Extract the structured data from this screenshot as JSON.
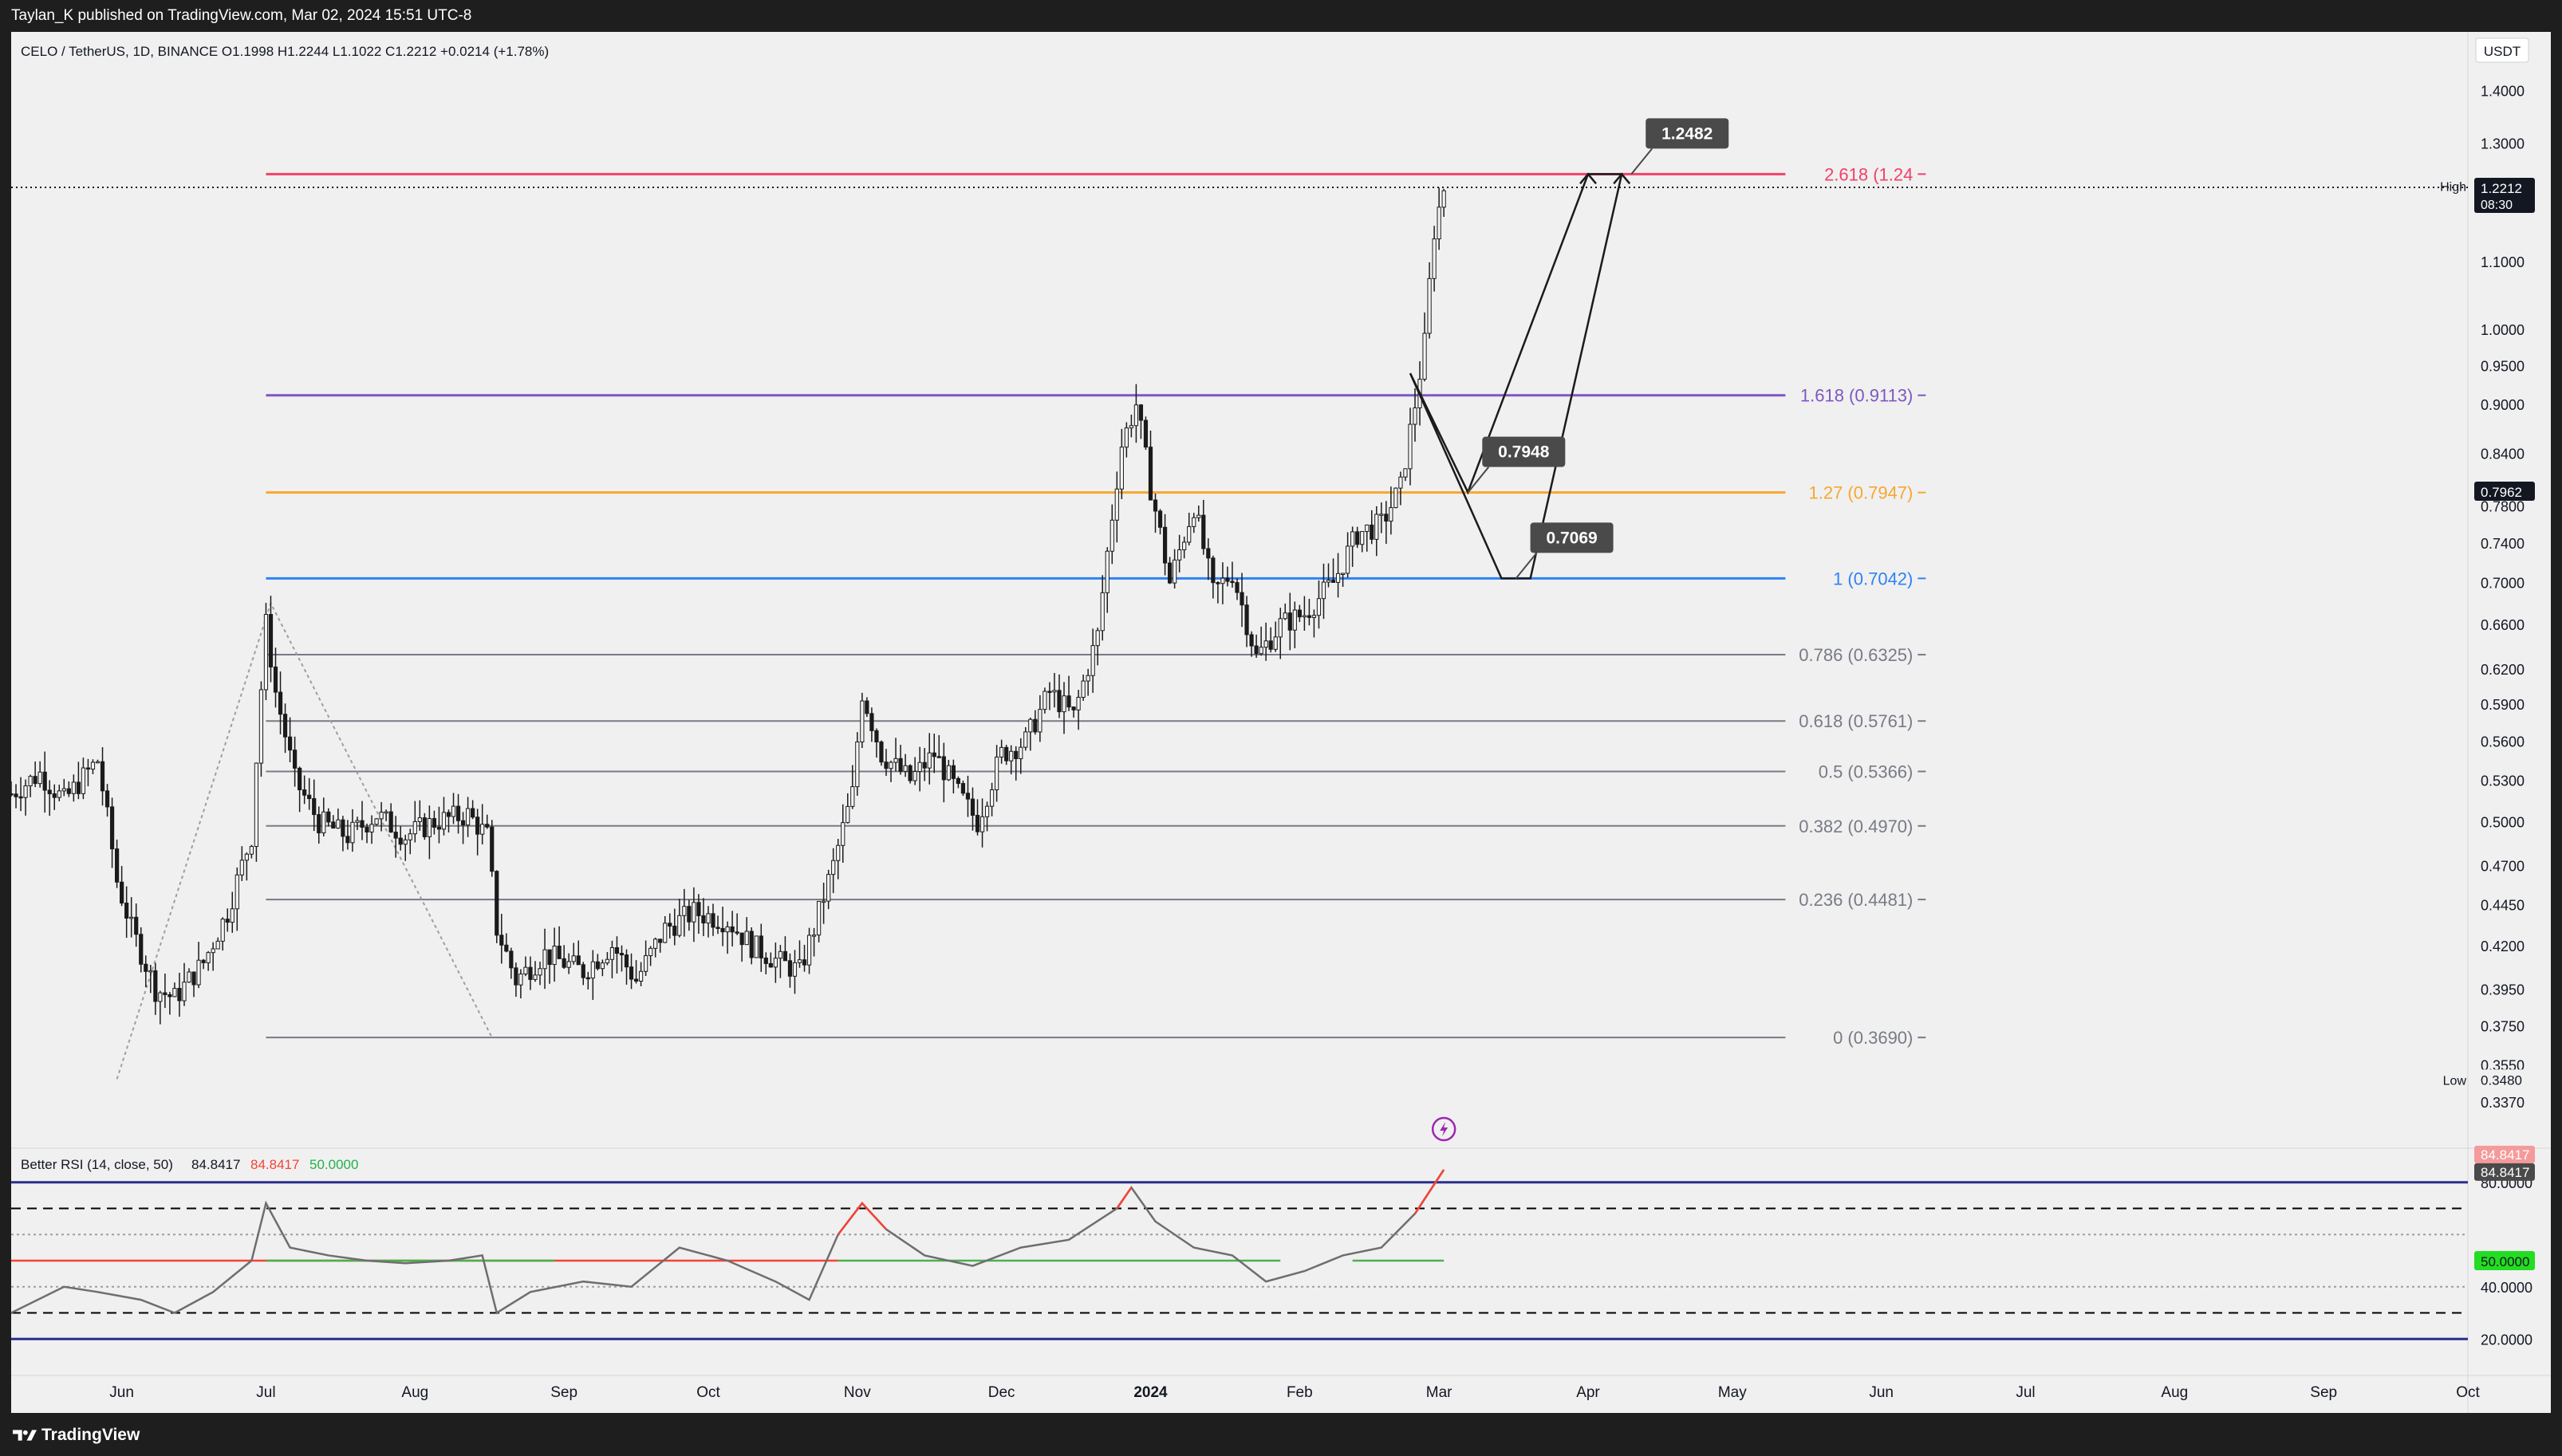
{
  "header": {
    "published": "Taylan_K published on TradingView.com, Mar 02, 2024 15:51 UTC-8"
  },
  "footer": {
    "brand": "TradingView"
  },
  "chart_data": {
    "type": "candlestick",
    "symbol_line": "CELO / TetherUS, 1D, BINANCE  O1.1998  H1.2244  L1.1022  C1.2212  +0.0214 (+1.78%)",
    "currency": "USDT",
    "x_labels": [
      {
        "label": "Jun",
        "date": "2023-06-01"
      },
      {
        "label": "Jul",
        "date": "2023-07-01"
      },
      {
        "label": "Aug",
        "date": "2023-08-01"
      },
      {
        "label": "Sep",
        "date": "2023-09-01"
      },
      {
        "label": "Oct",
        "date": "2023-10-01"
      },
      {
        "label": "Nov",
        "date": "2023-11-01"
      },
      {
        "label": "Dec",
        "date": "2023-12-01"
      },
      {
        "label": "2024",
        "date": "2024-01-01"
      },
      {
        "label": "Feb",
        "date": "2024-02-01"
      },
      {
        "label": "Mar",
        "date": "2024-03-01"
      },
      {
        "label": "Apr",
        "date": "2024-04-01"
      },
      {
        "label": "May",
        "date": "2024-05-01"
      },
      {
        "label": "Jun",
        "date": "2024-06-01"
      },
      {
        "label": "Jul",
        "date": "2024-07-01"
      },
      {
        "label": "Aug",
        "date": "2024-08-01"
      },
      {
        "label": "Sep",
        "date": "2024-09-01"
      },
      {
        "label": "Oct",
        "date": "2024-10-01"
      }
    ],
    "x_range": [
      "2023-05-09",
      "2024-10-01"
    ],
    "y_scale": "log",
    "y_range": [
      0.32,
      1.52
    ],
    "price_ticks": [
      "1.4000",
      "1.3000",
      "1.1000",
      "1.0000",
      "0.9500",
      "0.9000",
      "0.8400",
      "0.7800",
      "0.7400",
      "0.7000",
      "0.6600",
      "0.6200",
      "0.5900",
      "0.5600",
      "0.5300",
      "0.5000",
      "0.4700",
      "0.4450",
      "0.4200",
      "0.3950",
      "0.3750",
      "0.3550",
      "0.3370"
    ],
    "price_markers": [
      {
        "prefix": "High",
        "label": "1.2244",
        "value": 1.2244,
        "bg": "#f0f0f0",
        "fg": "#131722"
      },
      {
        "prefix": "",
        "label": "1.2212",
        "sub": "08:30",
        "value": 1.2212,
        "bg": "#131722",
        "fg": "#ffffff"
      },
      {
        "prefix": "",
        "label": "0.7962",
        "value": 0.7962,
        "bg": "#131722",
        "fg": "#ffffff"
      },
      {
        "prefix": "Low",
        "label": "0.3480",
        "value": 0.348,
        "bg": "#f0f0f0",
        "fg": "#131722"
      }
    ],
    "current_price": 1.2212,
    "fib_levels": [
      {
        "label": "2.618 (1.24",
        "value": 1.2442,
        "color": "#f2406a"
      },
      {
        "label": "1.618 (0.9113)",
        "value": 0.9113,
        "color": "#7e57c2"
      },
      {
        "label": "1.27 (0.7947)",
        "value": 0.7947,
        "color": "#f7a730"
      },
      {
        "label": "1 (0.7042)",
        "value": 0.7042,
        "color": "#2f82f5"
      },
      {
        "label": "0.786 (0.6325)",
        "value": 0.6325,
        "color": "#787b86"
      },
      {
        "label": "0.618 (0.5761)",
        "value": 0.5761,
        "color": "#787b86"
      },
      {
        "label": "0.5 (0.5366)",
        "value": 0.5366,
        "color": "#787b86"
      },
      {
        "label": "0.382 (0.4970)",
        "value": 0.497,
        "color": "#787b86"
      },
      {
        "label": "0.236 (0.4481)",
        "value": 0.4481,
        "color": "#787b86"
      },
      {
        "label": "0 (0.3690)",
        "value": 0.369,
        "color": "#787b86"
      }
    ],
    "fib_start": "2023-07-01",
    "fib_label_x": "2024-05-22",
    "fib_anchor_path": [
      {
        "date": "2023-05-31",
        "price": 0.348
      },
      {
        "date": "2023-07-02",
        "price": 0.68
      },
      {
        "date": "2023-08-17",
        "price": 0.369
      }
    ],
    "callouts": [
      {
        "label": "1.2482",
        "date": "2024-04-10",
        "price": 1.2442
      },
      {
        "label": "0.7948",
        "date": "2024-03-07",
        "price": 0.7947
      },
      {
        "label": "0.7069",
        "date": "2024-03-17",
        "price": 0.7042
      }
    ],
    "projection": [
      {
        "date": "2024-02-24",
        "price": 0.94
      },
      {
        "date": "2024-03-07",
        "price": 0.795
      },
      {
        "date": "2024-04-01",
        "price": 1.2442
      },
      {
        "date": "2024-04-08",
        "price": 1.2442
      },
      {
        "date": "2024-03-20",
        "price": 0.7042
      },
      {
        "date": "2024-03-14",
        "price": 0.7042
      },
      {
        "date": "2024-02-24",
        "price": 0.94
      }
    ],
    "price_path": [
      [
        "2023-05-09",
        0.52
      ],
      [
        "2023-05-15",
        0.535
      ],
      [
        "2023-05-20",
        0.515
      ],
      [
        "2023-05-27",
        0.545
      ],
      [
        "2023-05-31",
        0.46
      ],
      [
        "2023-06-03",
        0.43
      ],
      [
        "2023-06-08",
        0.395
      ],
      [
        "2023-06-12",
        0.39
      ],
      [
        "2023-06-18",
        0.41
      ],
      [
        "2023-06-23",
        0.44
      ],
      [
        "2023-06-28",
        0.49
      ],
      [
        "2023-07-01",
        0.66
      ],
      [
        "2023-07-03",
        0.6
      ],
      [
        "2023-07-07",
        0.53
      ],
      [
        "2023-07-12",
        0.5
      ],
      [
        "2023-07-18",
        0.49
      ],
      [
        "2023-07-24",
        0.505
      ],
      [
        "2023-07-30",
        0.49
      ],
      [
        "2023-08-05",
        0.5
      ],
      [
        "2023-08-12",
        0.505
      ],
      [
        "2023-08-16",
        0.49
      ],
      [
        "2023-08-18",
        0.43
      ],
      [
        "2023-08-22",
        0.4
      ],
      [
        "2023-08-28",
        0.415
      ],
      [
        "2023-09-05",
        0.405
      ],
      [
        "2023-09-11",
        0.42
      ],
      [
        "2023-09-16",
        0.4
      ],
      [
        "2023-09-22",
        0.43
      ],
      [
        "2023-09-28",
        0.44
      ],
      [
        "2023-10-05",
        0.435
      ],
      [
        "2023-10-10",
        0.42
      ],
      [
        "2023-10-16",
        0.41
      ],
      [
        "2023-10-20",
        0.405
      ],
      [
        "2023-10-23",
        0.43
      ],
      [
        "2023-10-27",
        0.47
      ],
      [
        "2023-10-31",
        0.52
      ],
      [
        "2023-11-02",
        0.6
      ],
      [
        "2023-11-06",
        0.55
      ],
      [
        "2023-11-12",
        0.53
      ],
      [
        "2023-11-17",
        0.55
      ],
      [
        "2023-11-22",
        0.52
      ],
      [
        "2023-11-26",
        0.5
      ],
      [
        "2023-12-01",
        0.55
      ],
      [
        "2023-12-06",
        0.56
      ],
      [
        "2023-12-11",
        0.6
      ],
      [
        "2023-12-16",
        0.58
      ],
      [
        "2023-12-21",
        0.65
      ],
      [
        "2023-12-26",
        0.85
      ],
      [
        "2023-12-29",
        0.9
      ],
      [
        "2024-01-01",
        0.8
      ],
      [
        "2024-01-05",
        0.7
      ],
      [
        "2024-01-10",
        0.78
      ],
      [
        "2024-01-14",
        0.69
      ],
      [
        "2024-01-18",
        0.71
      ],
      [
        "2024-01-23",
        0.63
      ],
      [
        "2024-01-28",
        0.66
      ],
      [
        "2024-02-02",
        0.67
      ],
      [
        "2024-02-08",
        0.7
      ],
      [
        "2024-02-13",
        0.75
      ],
      [
        "2024-02-18",
        0.76
      ],
      [
        "2024-02-22",
        0.8
      ],
      [
        "2024-02-25",
        0.9
      ],
      [
        "2024-02-27",
        0.98
      ],
      [
        "2024-02-29",
        1.15
      ],
      [
        "2024-03-02",
        1.2212
      ]
    ],
    "rsi": {
      "title": "Better RSI (14, close, 50)",
      "value": "84.8417",
      "value2": "84.8417",
      "mid": "50.0000",
      "ticks": [
        "80.0000",
        "40.0000",
        "20.0000"
      ],
      "levels": [
        {
          "value": 80,
          "style": "solid",
          "color": "#2a2e8c"
        },
        {
          "value": 70,
          "style": "dashed",
          "color": "#000000"
        },
        {
          "value": 60,
          "style": "dotted",
          "color": "#9e9e9e"
        },
        {
          "value": 50,
          "style": "solid",
          "color": "#f44336"
        },
        {
          "value": 40,
          "style": "dotted",
          "color": "#9e9e9e"
        },
        {
          "value": 30,
          "style": "dashed",
          "color": "#000000"
        },
        {
          "value": 20,
          "style": "solid",
          "color": "#2a2e8c"
        }
      ],
      "series": [
        [
          "2023-05-09",
          30
        ],
        [
          "2023-05-20",
          40
        ],
        [
          "2023-05-27",
          38
        ],
        [
          "2023-06-05",
          35
        ],
        [
          "2023-06-12",
          30
        ],
        [
          "2023-06-20",
          38
        ],
        [
          "2023-06-28",
          50
        ],
        [
          "2023-07-01",
          72
        ],
        [
          "2023-07-06",
          55
        ],
        [
          "2023-07-14",
          52
        ],
        [
          "2023-07-22",
          50
        ],
        [
          "2023-07-30",
          49
        ],
        [
          "2023-08-08",
          50
        ],
        [
          "2023-08-15",
          52
        ],
        [
          "2023-08-18",
          30
        ],
        [
          "2023-08-25",
          38
        ],
        [
          "2023-09-05",
          42
        ],
        [
          "2023-09-15",
          40
        ],
        [
          "2023-09-25",
          55
        ],
        [
          "2023-10-05",
          50
        ],
        [
          "2023-10-15",
          42
        ],
        [
          "2023-10-22",
          35
        ],
        [
          "2023-10-28",
          60
        ],
        [
          "2023-11-02",
          72
        ],
        [
          "2023-11-07",
          62
        ],
        [
          "2023-11-15",
          52
        ],
        [
          "2023-11-25",
          48
        ],
        [
          "2023-12-05",
          55
        ],
        [
          "2023-12-15",
          58
        ],
        [
          "2023-12-25",
          70
        ],
        [
          "2023-12-28",
          78
        ],
        [
          "2024-01-02",
          65
        ],
        [
          "2024-01-10",
          55
        ],
        [
          "2024-01-18",
          52
        ],
        [
          "2024-01-25",
          42
        ],
        [
          "2024-02-02",
          46
        ],
        [
          "2024-02-10",
          52
        ],
        [
          "2024-02-18",
          55
        ],
        [
          "2024-02-25",
          68
        ],
        [
          "2024-03-02",
          84.84
        ]
      ],
      "mid_segments": [
        [
          "2023-07-01",
          "2023-08-30"
        ],
        [
          "2023-10-28",
          "2024-01-28"
        ],
        [
          "2024-02-12",
          "2024-03-02"
        ]
      ]
    },
    "colors": {
      "up": "#f5f5f5",
      "down": "#1b1b1b",
      "wick": "#1b1b1b",
      "background": "#f0f0f0"
    }
  }
}
